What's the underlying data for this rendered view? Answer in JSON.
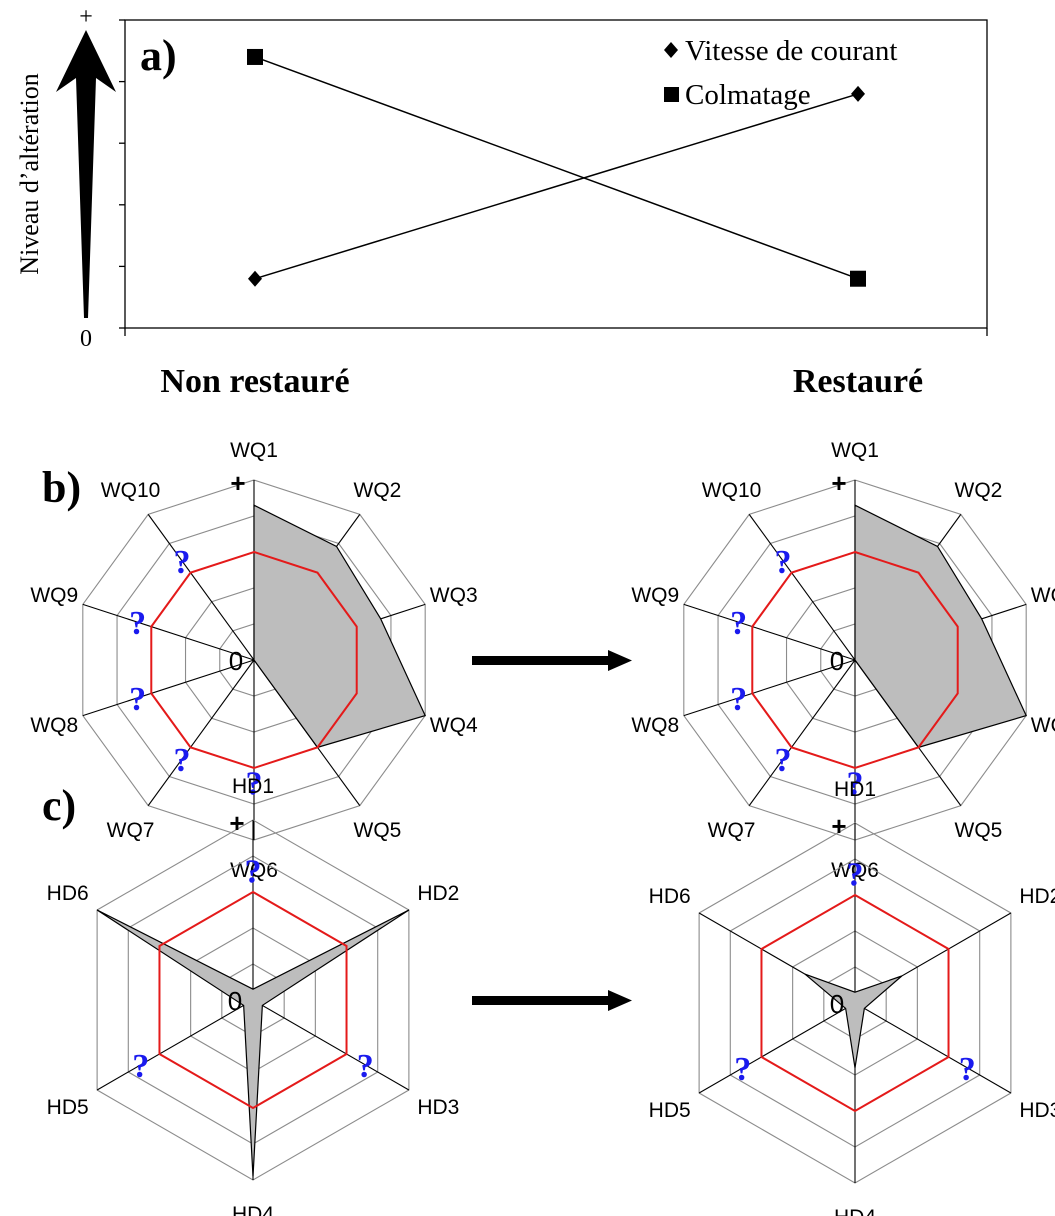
{
  "colors": {
    "reference_ring": "#e41a1a",
    "question_mark": "#1a1aee",
    "polygon_fill": "#bdbdbd",
    "grid": "#8c8c8c"
  },
  "chart_data": [
    {
      "panel": "a)",
      "type": "line",
      "ylabel": "Niveau d’altération",
      "y_top_label": "+",
      "y_bottom_label": "0",
      "categories": [
        "Non restauré",
        "Restauré"
      ],
      "ylim": [
        0,
        5
      ],
      "grid": false,
      "legend_position": "top-right",
      "series": [
        {
          "name": "Vitesse de courant",
          "marker": "diamond",
          "values": [
            0.8,
            3.8
          ]
        },
        {
          "name": "Colmatage",
          "marker": "square",
          "values": [
            4.4,
            0.8
          ]
        }
      ]
    },
    {
      "panel": "b)",
      "type": "radar",
      "axes": [
        "WQ1",
        "WQ2",
        "WQ3",
        "WQ4",
        "WQ5",
        "WQ6",
        "WQ7",
        "WQ8",
        "WQ9",
        "WQ10"
      ],
      "rings": 5,
      "max": 5,
      "reference_level": 3,
      "center_label": "0",
      "top_label": "+",
      "unknown_symbol": "?",
      "unknown_axes": [
        "WQ6",
        "WQ7",
        "WQ8",
        "WQ9",
        "WQ10"
      ],
      "grid": true,
      "states": [
        {
          "name": "Non restauré",
          "values": [
            4.3,
            3.9,
            3.7,
            5.0,
            3.0,
            0,
            0,
            0,
            0,
            0
          ]
        },
        {
          "name": "Restauré",
          "values": [
            4.3,
            3.9,
            3.7,
            5.0,
            3.0,
            0,
            0,
            0,
            0,
            0
          ]
        }
      ]
    },
    {
      "panel": "c)",
      "type": "radar",
      "axes": [
        "HD1",
        "HD2",
        "HD3",
        "HD4",
        "HD5",
        "HD6"
      ],
      "rings": 5,
      "max": 5,
      "reference_level": 3,
      "center_label": "0",
      "top_label": "+",
      "unknown_symbol": "?",
      "unknown_axes": [
        "HD1",
        "HD3",
        "HD5"
      ],
      "grid": true,
      "states": [
        {
          "name": "Non restauré",
          "values": [
            0.3,
            5.0,
            0.3,
            4.9,
            0.3,
            5.0
          ]
        },
        {
          "name": "Restauré",
          "values": [
            0.3,
            1.5,
            0.3,
            1.8,
            0.3,
            1.6
          ]
        }
      ]
    }
  ]
}
